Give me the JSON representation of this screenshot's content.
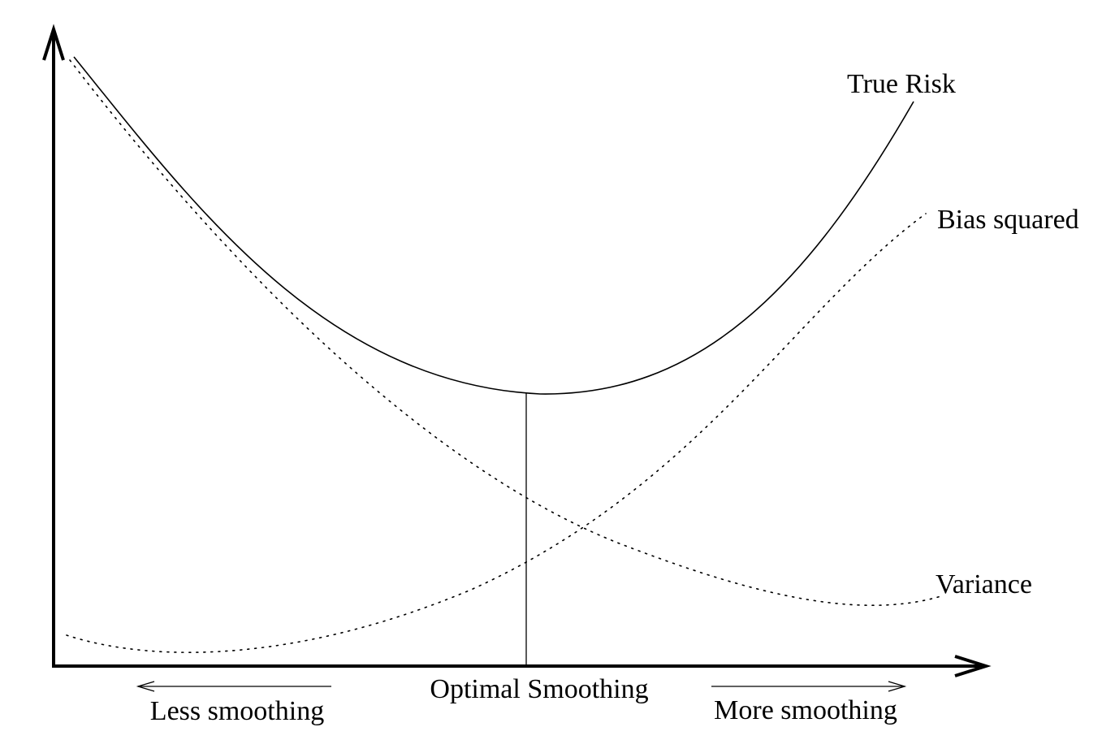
{
  "diagram": {
    "curves": {
      "true_risk": {
        "label": "True Risk",
        "style": "solid"
      },
      "bias_squared": {
        "label": "Bias squared",
        "style": "dotted"
      },
      "variance": {
        "label": "Variance",
        "style": "dotted"
      }
    },
    "annotations": {
      "optimal": "Optimal Smoothing",
      "less": "Less smoothing",
      "more": "More smoothing"
    },
    "colors": {
      "ink": "#000000",
      "background": "#ffffff"
    }
  }
}
